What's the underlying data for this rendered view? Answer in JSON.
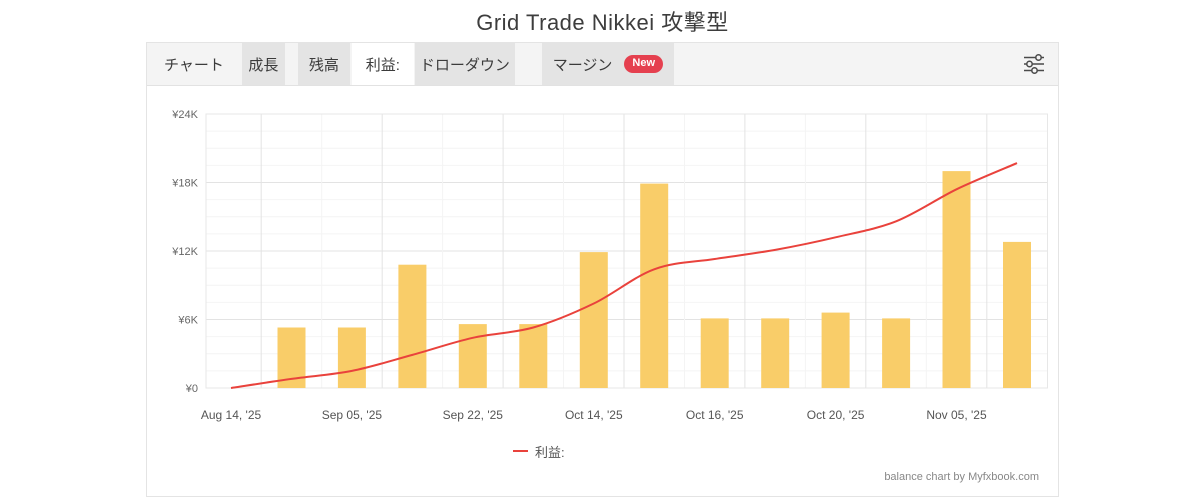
{
  "page_title": "Grid Trade Nikkei 攻撃型",
  "tabs": {
    "chart_label": "チャート",
    "items": [
      {
        "label": "成長",
        "active": false
      },
      {
        "label": "残高",
        "active": false
      },
      {
        "label": "利益:",
        "active": true
      },
      {
        "label": "ドローダウン",
        "active": false
      },
      {
        "label": "マージン",
        "active": false,
        "badge": "New"
      }
    ]
  },
  "legend": {
    "label": "利益:"
  },
  "footer": "balance chart by Myfxbook.com",
  "chart_data": {
    "type": "bar",
    "title": "Grid Trade Nikkei 攻撃型",
    "categories": [
      "Aug 14, '25",
      "",
      "Sep 05, '25",
      "",
      "Sep 22, '25",
      "",
      "Oct 14, '25",
      "",
      "Oct 16, '25",
      "",
      "Oct 20, '25",
      "",
      "Nov 05, '25",
      ""
    ],
    "series": [
      {
        "name": "利益:",
        "type": "bar",
        "color": "#f9cd69",
        "values": [
          null,
          5300,
          5300,
          10800,
          5600,
          5600,
          11900,
          17900,
          6100,
          6100,
          6600,
          6100,
          19000,
          12800
        ]
      },
      {
        "name": "利益:",
        "type": "line",
        "color": "#e9423c",
        "values": [
          0,
          800,
          1500,
          2900,
          4400,
          5300,
          7400,
          10400,
          11300,
          12100,
          13200,
          14600,
          17400,
          19700
        ]
      }
    ],
    "ylim": [
      0,
      24000
    ],
    "y_ticks": [
      {
        "v": 0,
        "label": "¥0"
      },
      {
        "v": 6000,
        "label": "¥6K"
      },
      {
        "v": 12000,
        "label": "¥12K"
      },
      {
        "v": 18000,
        "label": "¥18K"
      },
      {
        "v": 24000,
        "label": "¥24K"
      }
    ],
    "minor_step": 1500,
    "major_step": 6000,
    "grid": true,
    "legend_position": "bottom",
    "colors": {
      "grid_major": "#e3e3e3",
      "grid_minor": "#f4f4f4",
      "plot_border": "#e7e7e7",
      "tick_text": "#666666",
      "badge": "#e5404f"
    }
  }
}
